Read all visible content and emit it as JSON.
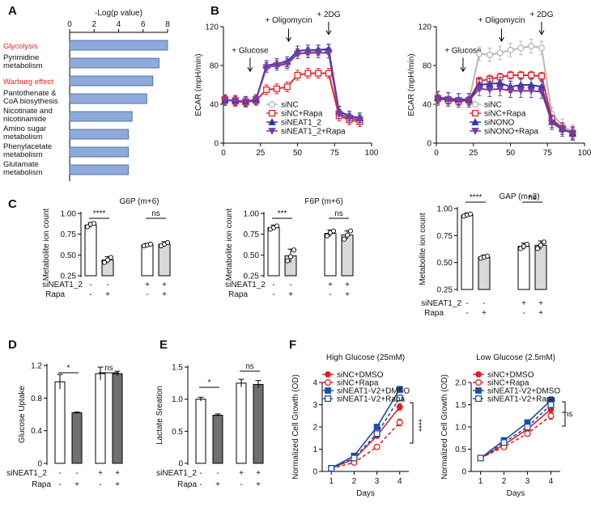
{
  "panel_labels": [
    "A",
    "B",
    "C",
    "D",
    "E",
    "F"
  ],
  "colors": {
    "pathway_bar": "#8eaadb",
    "pathway_bar_edge": "#3f5f9a",
    "highlight_text": "#e0282a",
    "siNC": "#b8b8b8",
    "siNC_Rapa": "#e8262a",
    "siNEAT1": "#2c3aa0",
    "siNEAT1_Rapa": "#7d3aa3",
    "siNONO": "#2c3aa0",
    "siNONO_Rapa": "#7d3aa3",
    "bar_white": "#ffffff",
    "bar_gray": "#d9d9d9",
    "bar_dark": "#707070",
    "growth_red": "#e02020",
    "growth_blue": "#1f4ea8"
  },
  "chart_data": [
    {
      "id": "A",
      "type": "bar",
      "orientation": "horizontal",
      "title": "-Log(p value)",
      "xlim": [
        0,
        8
      ],
      "xticks": [
        0,
        2,
        4,
        6,
        8
      ],
      "categories": [
        {
          "label": [
            "Glycolysis"
          ],
          "highlight": true
        },
        {
          "label": [
            "Pyrimidine",
            "metabolism"
          ],
          "highlight": false
        },
        {
          "label": [
            "Warburg effect"
          ],
          "highlight": true
        },
        {
          "label": [
            "Pantothenate &",
            "CoA biosythesis"
          ],
          "highlight": false
        },
        {
          "label": [
            "Nicotinate and",
            "nicotinamide"
          ],
          "highlight": false
        },
        {
          "label": [
            "Amino sugar",
            "metabolism"
          ],
          "highlight": false
        },
        {
          "label": [
            "Phenylacetate",
            "metabolism"
          ],
          "highlight": false
        },
        {
          "label": [
            "Glutamate",
            "metabolism"
          ],
          "highlight": false
        }
      ],
      "values": [
        8.0,
        7.3,
        6.8,
        6.3,
        5.1,
        4.8,
        4.8,
        4.8
      ]
    },
    {
      "id": "B1",
      "type": "line",
      "ylabel": "ECAR (mpH/min)",
      "xlim": [
        0,
        100
      ],
      "xticks": [
        0,
        25,
        50,
        75,
        100
      ],
      "ylim": [
        0,
        120
      ],
      "yticks": [
        0,
        40,
        80,
        120
      ],
      "annotations": [
        {
          "text": "+ Glucose",
          "x": 18,
          "y_text": 93,
          "y_arrow_top": 88,
          "y_arrow_bottom": 74
        },
        {
          "text": "+ Oligomycin",
          "x": 44,
          "y_text": 124,
          "y_arrow_top": 118,
          "y_arrow_bottom": 105
        },
        {
          "text": "+ 2DG",
          "x": 71,
          "y_text": 130,
          "y_arrow_top": 125,
          "y_arrow_bottom": 112
        }
      ],
      "x": [
        1,
        8,
        15,
        22,
        29,
        36,
        43,
        50,
        57,
        64,
        71,
        78,
        85,
        92
      ],
      "series": [
        {
          "name": "siNC",
          "marker": "circle",
          "color_key": "siNC",
          "values": [
            45,
            44,
            43,
            44,
            78,
            80,
            80,
            92,
            94,
            95,
            96,
            32,
            28,
            26
          ],
          "err": 5
        },
        {
          "name": "siNC+Rapa",
          "marker": "square",
          "color_key": "siNC_Rapa",
          "values": [
            45,
            43,
            42,
            44,
            55,
            56,
            58,
            70,
            72,
            72,
            72,
            28,
            24,
            22
          ],
          "err": 5
        },
        {
          "name": "siNEAT1_2",
          "marker": "triangle",
          "color_key": "siNEAT1",
          "values": [
            44,
            44,
            43,
            45,
            80,
            82,
            84,
            95,
            96,
            96,
            97,
            33,
            28,
            26
          ],
          "err": 5
        },
        {
          "name": "siNEAT1_2+Rapa",
          "marker": "triangle-down",
          "color_key": "siNEAT1_Rapa",
          "values": [
            44,
            44,
            43,
            45,
            78,
            80,
            82,
            92,
            93,
            93,
            93,
            30,
            26,
            24
          ],
          "err": 5
        }
      ]
    },
    {
      "id": "B2",
      "type": "line",
      "ylabel": "ECAR (mpH/min)",
      "xlim": [
        0,
        100
      ],
      "xticks": [
        0,
        25,
        50,
        75,
        100
      ],
      "ylim": [
        0,
        120
      ],
      "yticks": [
        0,
        40,
        80,
        120
      ],
      "annotations": [
        {
          "text": "+ Glucose",
          "x": 18,
          "y_text": 93,
          "y_arrow_top": 88,
          "y_arrow_bottom": 74
        },
        {
          "text": "+ Oligomycin",
          "x": 44,
          "y_text": 124,
          "y_arrow_top": 118,
          "y_arrow_bottom": 105
        },
        {
          "text": "+ 2DG",
          "x": 71,
          "y_text": 130,
          "y_arrow_top": 125,
          "y_arrow_bottom": 112
        }
      ],
      "x": [
        1,
        8,
        15,
        22,
        29,
        36,
        43,
        50,
        57,
        64,
        71,
        78,
        85,
        92
      ],
      "series": [
        {
          "name": "siNC",
          "marker": "circle",
          "color_key": "siNC",
          "values": [
            47,
            45,
            44,
            44,
            92,
            91,
            93,
            96,
            98,
            100,
            98,
            30,
            18,
            12
          ],
          "err": 7
        },
        {
          "name": "siNC+Rapa",
          "marker": "square",
          "color_key": "siNC_Rapa",
          "values": [
            46,
            44,
            43,
            44,
            64,
            66,
            68,
            70,
            70,
            70,
            69,
            25,
            15,
            10
          ],
          "err": 4
        },
        {
          "name": "siNONO",
          "marker": "triangle",
          "color_key": "siNONO",
          "values": [
            47,
            46,
            45,
            45,
            60,
            61,
            62,
            58,
            60,
            60,
            58,
            22,
            15,
            10
          ],
          "err": 6
        },
        {
          "name": "siNONO+Rapa",
          "marker": "triangle-down",
          "color_key": "siNONO_Rapa",
          "values": [
            46,
            45,
            44,
            44,
            56,
            55,
            56,
            54,
            54,
            54,
            53,
            21,
            14,
            10
          ],
          "err": 7
        }
      ]
    },
    {
      "id": "C1",
      "type": "bar",
      "title": "G6P (m+6)",
      "ylabel": "Metabolite ion count",
      "ylim": [
        0.25,
        1.0
      ],
      "yticks": [
        "0.25",
        "0.50",
        "0.75",
        "1.00"
      ],
      "values": [
        0.86,
        0.44,
        0.62,
        0.63
      ],
      "errors": [
        0.03,
        0.04,
        0.02,
        0.03
      ],
      "fills": [
        "white",
        "gray",
        "white",
        "gray"
      ],
      "dots": [
        [
          0.84,
          0.87,
          0.88
        ],
        [
          0.41,
          0.44,
          0.47
        ],
        [
          0.61,
          0.62,
          0.63
        ],
        [
          0.61,
          0.63,
          0.65
        ]
      ],
      "sig": [
        "****",
        "ns"
      ],
      "row_labels": [
        "siNEAT1_2",
        "Rapa"
      ],
      "signs": [
        [
          "-",
          "-",
          "+",
          "+"
        ],
        [
          "-",
          "+",
          "-",
          "+"
        ]
      ]
    },
    {
      "id": "C2",
      "type": "bar",
      "title": "F6P (m+6)",
      "ylabel": "Metabolite ion count",
      "ylim": [
        0.25,
        1.0
      ],
      "yticks": [
        "0.25",
        "0.50",
        "0.75",
        "1.00"
      ],
      "values": [
        0.83,
        0.49,
        0.76,
        0.74
      ],
      "errors": [
        0.03,
        0.08,
        0.04,
        0.05
      ],
      "fills": [
        "white",
        "gray",
        "white",
        "gray"
      ],
      "dots": [
        [
          0.81,
          0.83,
          0.85
        ],
        [
          0.43,
          0.48,
          0.56
        ],
        [
          0.73,
          0.77,
          0.79
        ],
        [
          0.69,
          0.74,
          0.79
        ]
      ],
      "sig": [
        "***",
        "ns"
      ],
      "row_labels": [
        "siNEAT1_2",
        "Rapa"
      ],
      "signs": [
        [
          "-",
          "-",
          "+",
          "+"
        ],
        [
          "-",
          "+",
          "-",
          "+"
        ]
      ]
    },
    {
      "id": "C3",
      "type": "bar",
      "title": "GAP (m+3)",
      "ylabel": "Metabolite ion count",
      "ylim": [
        0.25,
        1.0
      ],
      "yticks": [
        "0.25",
        "0.50",
        "0.75",
        "1.00"
      ],
      "values": [
        0.94,
        0.55,
        0.65,
        0.66
      ],
      "errors": [
        0.02,
        0.02,
        0.03,
        0.04
      ],
      "fills": [
        "white",
        "gray",
        "white",
        "gray"
      ],
      "dots": [
        [
          0.93,
          0.94,
          0.95
        ],
        [
          0.54,
          0.55,
          0.56
        ],
        [
          0.63,
          0.65,
          0.67
        ],
        [
          0.63,
          0.66,
          0.69
        ]
      ],
      "sig": [
        "****",
        "ns"
      ],
      "row_labels": [
        "siNEAT1_2",
        "Rapa"
      ],
      "signs": [
        [
          "-",
          "-",
          "+",
          "+"
        ],
        [
          "-",
          "+",
          "-",
          "+"
        ]
      ]
    },
    {
      "id": "D",
      "type": "bar",
      "ylabel": "Glucose Uptake",
      "ylim": [
        0,
        1.2
      ],
      "yticks": [
        "0",
        "0.4",
        "0.8",
        "1.2"
      ],
      "values": [
        1.0,
        0.62,
        1.1,
        1.1
      ],
      "errors": [
        0.09,
        0.01,
        0.08,
        0.03
      ],
      "fills": [
        "white",
        "dark",
        "white",
        "dark"
      ],
      "sig": [
        "*",
        "ns"
      ],
      "row_labels": [
        "siNEAT1_2",
        "Rapa"
      ],
      "signs": [
        [
          "-",
          "-",
          "+",
          "+"
        ],
        [
          "-",
          "+",
          "-",
          "+"
        ]
      ]
    },
    {
      "id": "E",
      "type": "bar",
      "ylabel": "Lactate Sreation",
      "ylim": [
        0,
        1.5
      ],
      "yticks": [
        "0",
        "0.5",
        "1.0",
        "1.5"
      ],
      "values": [
        1.0,
        0.75,
        1.25,
        1.23
      ],
      "errors": [
        0.03,
        0.02,
        0.06,
        0.06
      ],
      "fills": [
        "white",
        "dark",
        "white",
        "dark"
      ],
      "sig": [
        "*",
        "ns"
      ],
      "row_labels": [
        "siNEAT1_2",
        "Rapa"
      ],
      "signs": [
        [
          "-",
          "-",
          "+",
          "+"
        ],
        [
          "-",
          "+",
          "-",
          "+"
        ]
      ]
    },
    {
      "id": "F1",
      "type": "line",
      "title": "High Glucose (25mM)",
      "xlabel": "Days",
      "ylabel": "Normalized Cell Growth (OD)",
      "xlim": [
        0.6,
        4.4
      ],
      "xticks": [
        1,
        2,
        3,
        4
      ],
      "ylim": [
        0,
        4
      ],
      "yticks": [
        0,
        1,
        2,
        3,
        4
      ],
      "x": [
        1,
        2,
        3,
        4
      ],
      "series": [
        {
          "name": "siNC+DMSO",
          "marker": "filled-circle",
          "dash": false,
          "color_key": "growth_red",
          "values": [
            0.15,
            0.55,
            1.6,
            2.9
          ],
          "err": [
            0.03,
            0.05,
            0.1,
            0.15
          ]
        },
        {
          "name": "siNC+Rapa",
          "marker": "open-circle",
          "dash": true,
          "color_key": "growth_red",
          "values": [
            0.13,
            0.4,
            1.1,
            2.2
          ],
          "err": [
            0.03,
            0.05,
            0.1,
            0.15
          ]
        },
        {
          "name": "siNEAT1-V2+DMSO",
          "marker": "filled-square",
          "dash": false,
          "color_key": "growth_blue",
          "values": [
            0.15,
            0.7,
            2.0,
            3.7
          ],
          "err": [
            0.03,
            0.05,
            0.08,
            0.12
          ]
        },
        {
          "name": "siNEAT1-V2+Rapa",
          "marker": "open-square",
          "dash": true,
          "color_key": "growth_blue",
          "values": [
            0.14,
            0.6,
            1.7,
            3.3
          ],
          "err": [
            0.03,
            0.05,
            0.08,
            0.12
          ]
        }
      ],
      "sig_label": "****"
    },
    {
      "id": "F2",
      "type": "line",
      "title": "Low Glucose (2.5mM)",
      "xlabel": "Days",
      "ylabel": "Normalized Cell Growth (OD)",
      "xlim": [
        0.6,
        4.4
      ],
      "xticks": [
        1,
        2,
        3,
        4
      ],
      "ylim": [
        0,
        2.0
      ],
      "yticks": [
        "0",
        "0.5",
        "1.0",
        "1.5",
        "2.0"
      ],
      "x": [
        1,
        2,
        3,
        4
      ],
      "series": [
        {
          "name": "siNC+DMSO",
          "marker": "filled-circle",
          "dash": false,
          "color_key": "growth_red",
          "values": [
            0.3,
            0.6,
            0.95,
            1.4
          ],
          "err": [
            0.03,
            0.05,
            0.06,
            0.08
          ]
        },
        {
          "name": "siNC+Rapa",
          "marker": "open-circle",
          "dash": true,
          "color_key": "growth_red",
          "values": [
            0.3,
            0.55,
            0.85,
            1.25
          ],
          "err": [
            0.03,
            0.05,
            0.06,
            0.08
          ]
        },
        {
          "name": "siNEAT1-V2+DMSO",
          "marker": "filled-square",
          "dash": false,
          "color_key": "growth_blue",
          "values": [
            0.3,
            0.7,
            1.1,
            1.6
          ],
          "err": [
            0.03,
            0.05,
            0.06,
            0.08
          ]
        },
        {
          "name": "siNEAT1-V2+Rapa",
          "marker": "open-square",
          "dash": true,
          "color_key": "growth_blue",
          "values": [
            0.3,
            0.65,
            1.0,
            1.5
          ],
          "err": [
            0.03,
            0.05,
            0.06,
            0.08
          ]
        }
      ],
      "sig_label": "ns"
    }
  ]
}
